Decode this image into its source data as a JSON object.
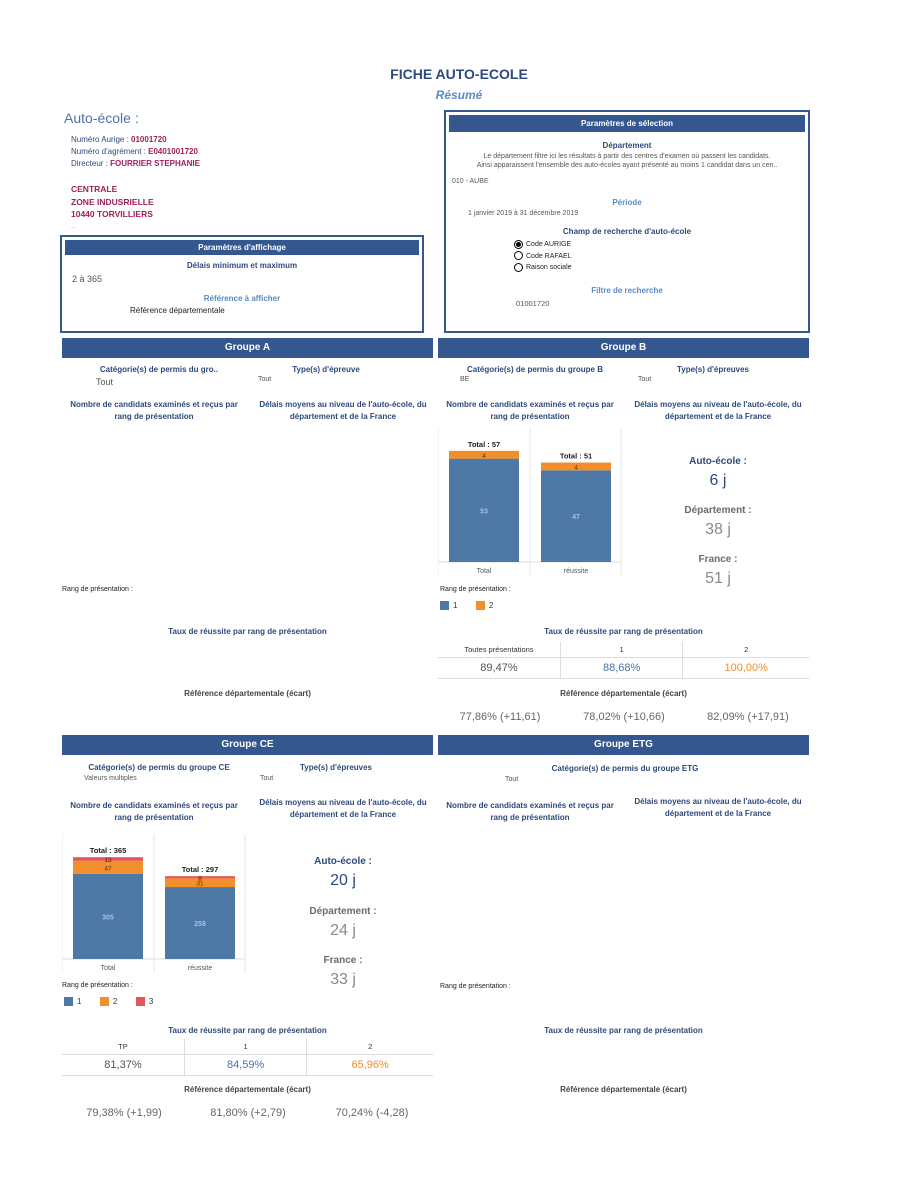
{
  "header": {
    "title": "FICHE AUTO-ECOLE",
    "subtitle": "Résumé"
  },
  "auto_ecole": {
    "label": "Auto-école :",
    "aurige_label": "Numéro Aurige : ",
    "aurige": "01001720",
    "agrement_label": "Numéro d'agrément : ",
    "agrement": "E0401001720",
    "directeur_label": "Directeur : ",
    "directeur": "FOURRIER STEPHANIE",
    "addr1": "CENTRALE",
    "addr2": "ZONE INDUSRIELLE",
    "addr3": "10440 TORVILLIERS",
    "addr4": ".."
  },
  "affichage": {
    "title": "Paramètres d'affichage",
    "delais_label": "Délais minimum et maximum",
    "delais_value": "2 à 365",
    "ref_label": "Référence à afficher",
    "ref_value": "Référence départementale"
  },
  "selection": {
    "title": "Paramètres de sélection",
    "dept_label": "Département",
    "dept_desc1": "Le département filtre ici les résultats à partir des centres d'examen où passent les candidats.",
    "dept_desc2": "Ainsi apparaissent l'ensemble des auto-écoles ayant présenté au moins 1 candidat dans un cen..",
    "dept_value": "010 - AUBE",
    "periode_label": "Période",
    "periode_value": "1 janvier 2019 à 31 décembre 2019",
    "champ_label": "Champ de recherche d'auto-école",
    "options": [
      "Code AURIGE",
      "Code RAFAEL",
      "Raison sociale"
    ],
    "filtre_label": "Filtre de recherche",
    "filtre_value": "01001720"
  },
  "groupA": {
    "title": "Groupe A",
    "cat_label": "Catégorie(s) de permis du gro..",
    "cat_value": "Tout",
    "type_label": "Type(s) d'épreuve",
    "type_value": "Tout",
    "nb_label": "Nombre de candidats examinés et reçus par rang de présentation",
    "delais_label": "Délais moyens au niveau de l'auto-école, du département et de la France",
    "rang_label": "Rang de présentation :",
    "taux_label": "Taux de réussite par rang de présentation",
    "ref_label": "Référence départementale (écart)"
  },
  "groupB": {
    "title": "Groupe B",
    "cat_label": "Catégorie(s) de permis du groupe B",
    "cat_value": "BE",
    "type_label": "Type(s) d'épreuves",
    "type_value": "Tout",
    "nb_label": "Nombre de candidats examinés et reçus par rang de présentation",
    "delais_label": "Délais moyens au niveau de l'auto-école, du département et de la France",
    "total_labels": [
      "Total : 57",
      "Total : 51"
    ],
    "rang_label": "Rang de présentation :",
    "legend": [
      "1",
      "2"
    ],
    "ae_label": "Auto-école :",
    "ae_value": "6 j",
    "dep_label": "Département :",
    "dep_value": "38 j",
    "fr_label": "France :",
    "fr_value": "51 j",
    "taux_label": "Taux de réussite par rang de présentation",
    "taux_headers": [
      "Toutes présentations",
      "1",
      "2"
    ],
    "taux_values": [
      "89,47%",
      "88,68%",
      "100,00%"
    ],
    "ref_label": "Référence départementale (écart)",
    "ref_values": [
      "77,86% (+11,61)",
      "78,02% (+10,66)",
      "82,09% (+17,91)"
    ]
  },
  "groupCE": {
    "title": "Groupe CE",
    "cat_label": "Catégorie(s) de permis du groupe CE",
    "cat_value": "Valeurs multiples",
    "type_label": "Type(s) d'épreuves",
    "type_value": "Tout",
    "nb_label": "Nombre de candidats examinés et reçus par rang de présentation",
    "delais_label": "Délais moyens au niveau de l'auto-école, du département et de la France",
    "total_labels": [
      "Total : 365",
      "Total : 297"
    ],
    "rang_label": "Rang de présentation :",
    "legend": [
      "1",
      "2",
      "3"
    ],
    "ae_label": "Auto-école :",
    "ae_value": "20 j",
    "dep_label": "Département :",
    "dep_value": "24 j",
    "fr_label": "France :",
    "fr_value": "33 j",
    "taux_label": "Taux de réussite par rang de présentation",
    "taux_headers": [
      "TP",
      "1",
      "2"
    ],
    "taux_values": [
      "81,37%",
      "84,59%",
      "65,96%"
    ],
    "ref_label": "Référence départementale (écart)",
    "ref_values": [
      "79,38% (+1,99)",
      "81,80% (+2,79)",
      "70,24% (-4,28)"
    ]
  },
  "groupETG": {
    "title": "Groupe ETG",
    "cat_label": "Catégorie(s) de permis du groupe ETG",
    "cat_value": "Tout",
    "nb_label": "Nombre de candidats examinés et reçus par rang de présentation",
    "delais_label": "Délais moyens au niveau de l'auto-école, du département et de la France",
    "rang_label": "Rang de présentation :",
    "taux_label": "Taux de réussite par rang de présentation",
    "ref_label": "Référence départementale (écart)"
  },
  "colors": {
    "rang1": "#4e79a7",
    "rang2": "#f28e2b",
    "rang3": "#e15759",
    "panel": "#34578f"
  },
  "chart_data": [
    {
      "type": "bar",
      "title": "Groupe B",
      "categories": [
        "Total",
        "réussite"
      ],
      "series": [
        {
          "name": "1",
          "values": [
            53,
            47
          ]
        },
        {
          "name": "2",
          "values": [
            4,
            4
          ]
        }
      ],
      "totals": [
        57,
        51
      ],
      "ylim": [
        0,
        60
      ]
    },
    {
      "type": "bar",
      "title": "Groupe CE",
      "categories": [
        "Total",
        "réussite"
      ],
      "series": [
        {
          "name": "1",
          "values": [
            305,
            258
          ]
        },
        {
          "name": "2",
          "values": [
            47,
            31
          ]
        },
        {
          "name": "3",
          "values": [
            13,
            8
          ]
        }
      ],
      "totals": [
        365,
        297
      ],
      "ylim": [
        0,
        380
      ]
    }
  ]
}
